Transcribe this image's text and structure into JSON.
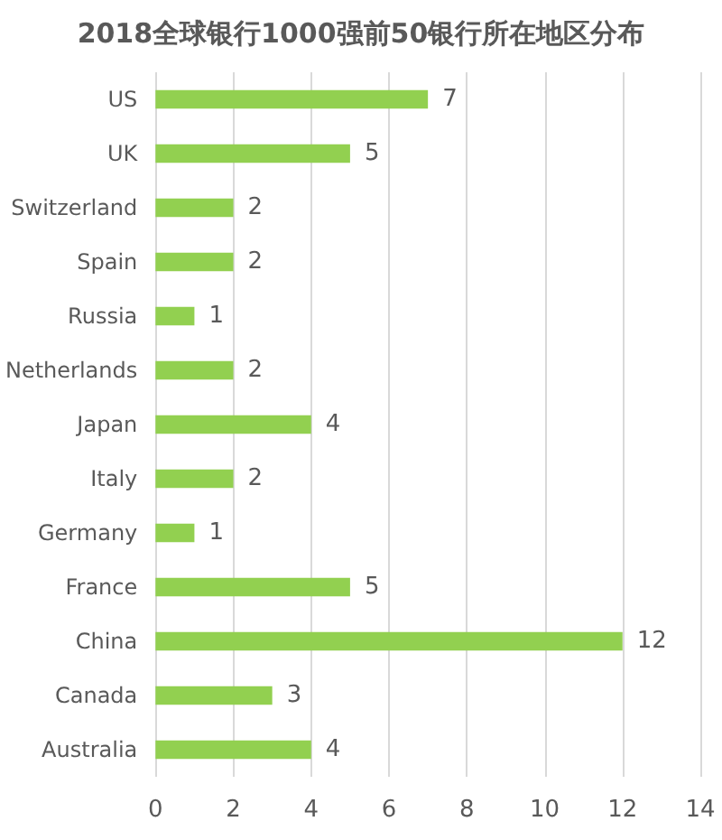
{
  "chart_data": {
    "type": "bar",
    "orientation": "horizontal",
    "title": "2018全球银行1000强前50银行所在地区分布",
    "categories": [
      "US",
      "UK",
      "Switzerland",
      "Spain",
      "Russia",
      "Netherlands",
      "Japan",
      "Italy",
      "Germany",
      "France",
      "China",
      "Canada",
      "Australia"
    ],
    "values": [
      7,
      5,
      2,
      2,
      1,
      2,
      4,
      2,
      1,
      5,
      12,
      3,
      4
    ],
    "color": "#92d050",
    "xlim": [
      0,
      14
    ],
    "xticks": [
      0,
      2,
      4,
      6,
      8,
      10,
      12,
      14
    ],
    "grid": "x",
    "data_labels": true
  }
}
